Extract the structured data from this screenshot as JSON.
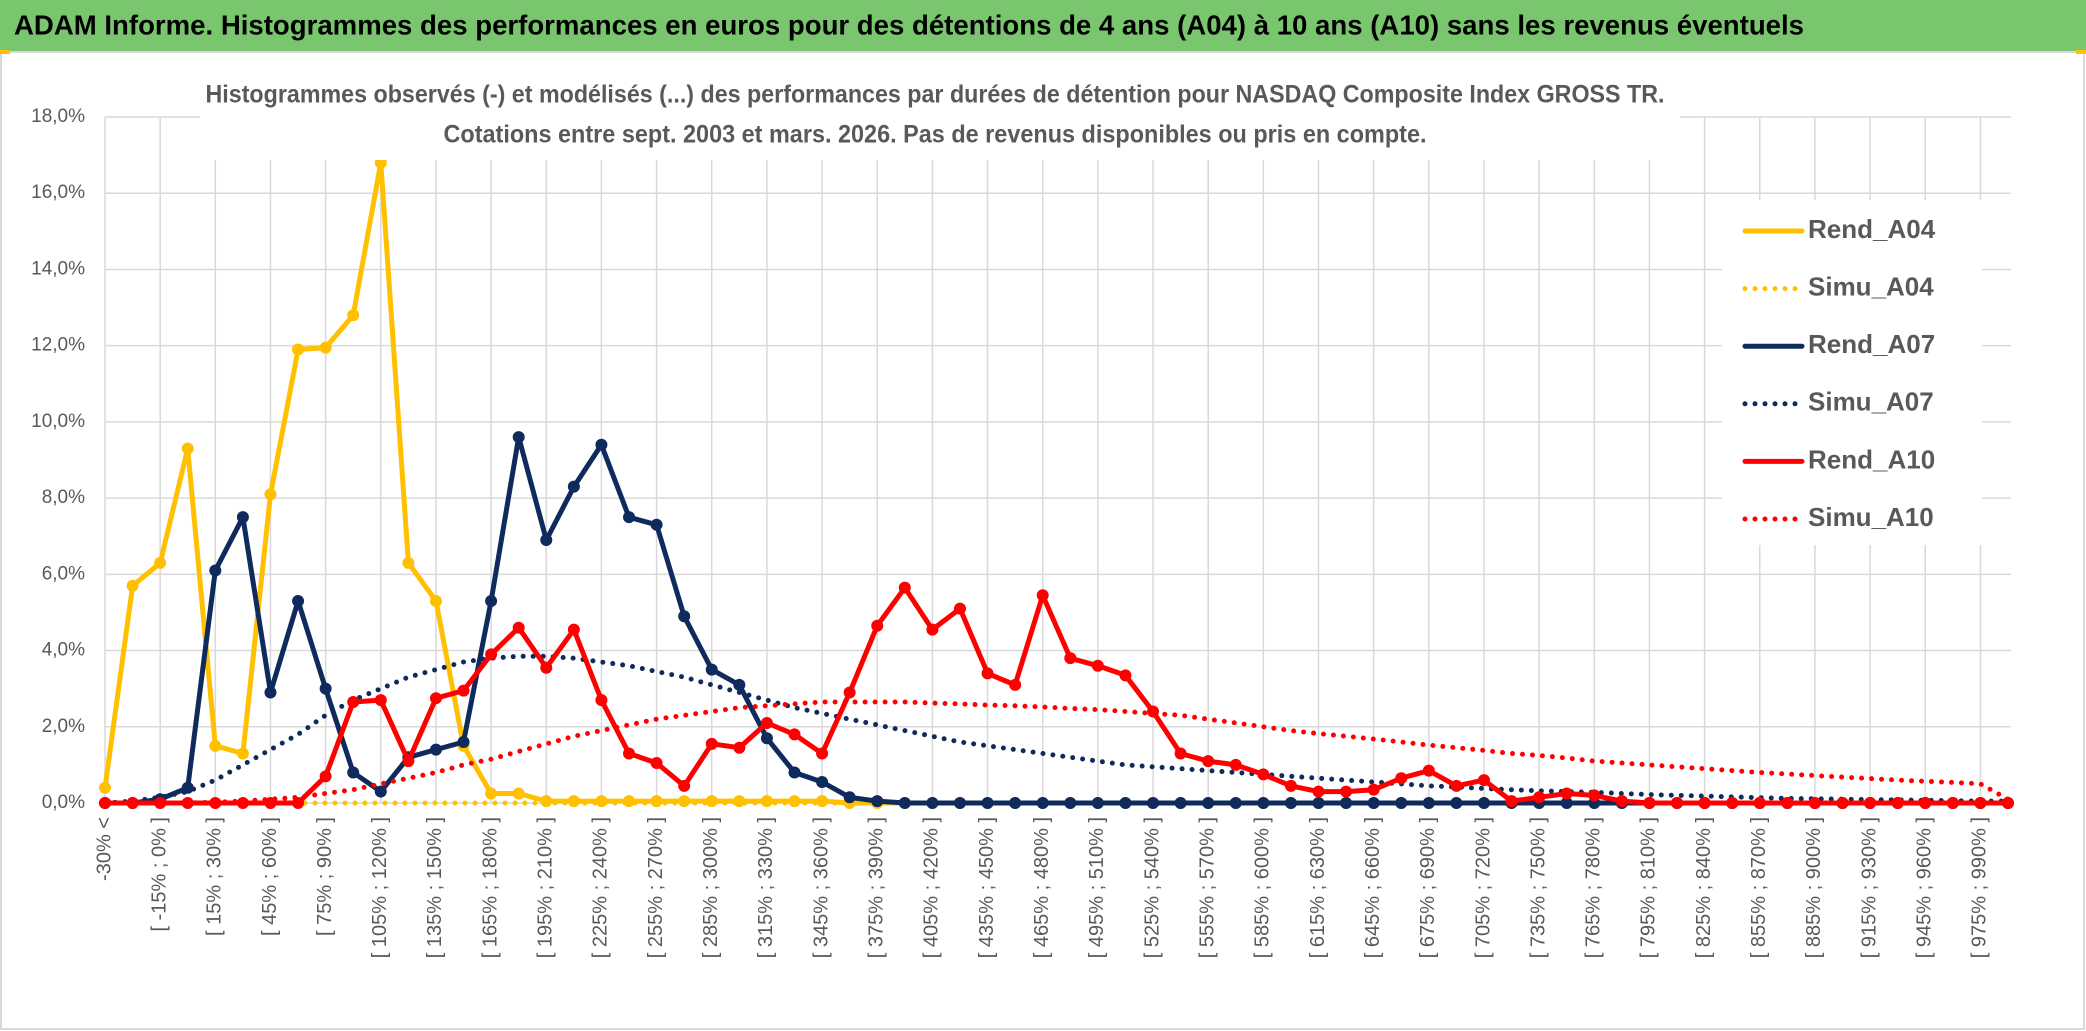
{
  "header": {
    "title": "ADAM Informe. Histogrammes des performances en euros pour des détentions de 4 ans (A04) à 10 ans (A10) sans les revenus éventuels"
  },
  "chart_data": {
    "type": "line",
    "title": "Histogrammes observés (-) et modélisés (...) des performances par durées de détention pour NASDAQ Composite Index GROSS TR.",
    "subtitle": "Cotations entre sept. 2003 et mars. 2026. Pas de revenus disponibles ou pris en compte.",
    "categories": [
      "-30% <",
      null,
      "[ -15% ; 0% ]",
      null,
      "[ 15% ; 30% ]",
      null,
      "[ 45% ; 60% ]",
      null,
      "[ 75% ; 90% ]",
      null,
      "[ 105% ; 120% ]",
      null,
      "[ 135% ; 150% ]",
      null,
      "[ 165% ; 180% ]",
      null,
      "[ 195% ; 210% ]",
      null,
      "[ 225% ; 240% ]",
      null,
      "[ 255% ; 270% ]",
      null,
      "[ 285% ; 300% ]",
      null,
      "[ 315% ; 330% ]",
      null,
      "[ 345% ; 360% ]",
      null,
      "[ 375% ; 390% ]",
      null,
      "[ 405% ; 420% ]",
      null,
      "[ 435% ; 450% ]",
      null,
      "[ 465% ; 480% ]",
      null,
      "[ 495% ; 510% ]",
      null,
      "[ 525% ; 540% ]",
      null,
      "[ 555% ; 570% ]",
      null,
      "[ 585% ; 600% ]",
      null,
      "[ 615% ; 630% ]",
      null,
      "[ 645% ; 660% ]",
      null,
      "[ 675% ; 690% ]",
      null,
      "[ 705% ; 720% ]",
      null,
      "[ 735% ; 750% ]",
      null,
      "[ 765% ; 780% ]",
      null,
      "[ 795% ; 810% ]",
      null,
      "[ 825% ; 840% ]",
      null,
      "[ 855% ; 870% ]",
      null,
      "[ 885% ; 900% ]",
      null,
      "[ 915% ; 930% ]",
      null,
      "[ 945% ; 960% ]",
      null,
      "[ 975% ; 990% ]",
      null
    ],
    "ylim": [
      0,
      18
    ],
    "yticks": [
      {
        "value": 0,
        "label": "0,0%"
      },
      {
        "value": 2,
        "label": "2,0%"
      },
      {
        "value": 4,
        "label": "4,0%"
      },
      {
        "value": 6,
        "label": "6,0%"
      },
      {
        "value": 8,
        "label": "8,0%"
      },
      {
        "value": 10,
        "label": "10,0%"
      },
      {
        "value": 12,
        "label": "12,0%"
      },
      {
        "value": 14,
        "label": "14,0%"
      },
      {
        "value": 16,
        "label": "16,0%"
      },
      {
        "value": 18,
        "label": "18,0%"
      }
    ],
    "grid": true,
    "legend": "right",
    "series": [
      {
        "name": "Rend_A04",
        "color": "#ffc000",
        "style": "solid",
        "markers": true,
        "values": [
          0.4,
          5.7,
          6.3,
          9.3,
          1.5,
          1.3,
          8.1,
          11.9,
          11.95,
          12.8,
          16.8,
          6.3,
          5.3,
          1.5,
          0.25,
          0.25,
          0.05,
          0.05,
          0.05,
          0.05,
          0.05,
          0.05,
          0.05,
          0.05,
          0.05,
          0.05,
          0.05,
          0,
          0,
          0,
          0,
          0,
          0,
          0,
          0,
          0,
          0,
          0,
          0,
          0,
          0,
          0,
          0,
          0,
          0,
          0,
          0,
          0,
          0,
          0,
          0,
          0,
          0,
          0,
          0,
          0,
          0,
          0,
          0,
          0,
          0,
          0,
          0,
          0,
          0,
          0,
          0,
          0,
          0,
          0
        ]
      },
      {
        "name": "Simu_A04",
        "color": "#ffc000",
        "style": "dotted",
        "markers": false,
        "values": [
          0,
          0,
          0,
          0,
          0,
          0,
          0,
          0,
          0,
          0,
          0,
          0,
          0,
          0,
          0,
          0,
          0,
          0,
          0,
          0,
          0,
          0,
          0,
          0,
          0,
          0,
          0,
          0,
          0,
          0,
          0,
          0,
          0,
          0,
          0,
          0,
          0,
          0,
          0,
          0,
          0,
          0,
          0,
          0,
          0,
          0,
          0,
          0,
          0,
          0,
          0,
          0,
          0,
          0,
          0,
          0,
          0,
          0,
          0,
          0,
          0,
          0,
          0,
          0,
          0,
          0,
          0,
          0,
          0,
          0
        ]
      },
      {
        "name": "Rend_A07",
        "color": "#0f2a5c",
        "style": "solid",
        "markers": true,
        "values": [
          0,
          0,
          0.1,
          0.4,
          6.1,
          7.5,
          2.9,
          5.3,
          3.0,
          0.8,
          0.3,
          1.2,
          1.4,
          1.6,
          5.3,
          9.6,
          6.9,
          8.3,
          9.4,
          7.5,
          7.3,
          4.9,
          3.5,
          3.1,
          1.7,
          0.8,
          0.55,
          0.15,
          0.05,
          0,
          0,
          0,
          0,
          0,
          0,
          0,
          0,
          0,
          0,
          0,
          0,
          0,
          0,
          0,
          0,
          0,
          0,
          0,
          0,
          0,
          0,
          0,
          0,
          0,
          0,
          0,
          0,
          0,
          0,
          0,
          0,
          0,
          0,
          0,
          0,
          0,
          0,
          0,
          0,
          0
        ]
      },
      {
        "name": "Simu_A07",
        "color": "#0f2a5c",
        "style": "dotted",
        "markers": false,
        "values": [
          0,
          0.05,
          0.15,
          0.3,
          0.6,
          1.0,
          1.4,
          1.8,
          2.3,
          2.7,
          3.0,
          3.3,
          3.5,
          3.7,
          3.8,
          3.85,
          3.85,
          3.8,
          3.7,
          3.6,
          3.45,
          3.3,
          3.1,
          2.9,
          2.7,
          2.5,
          2.35,
          2.2,
          2.05,
          1.9,
          1.75,
          1.6,
          1.5,
          1.4,
          1.3,
          1.2,
          1.1,
          1.0,
          0.95,
          0.9,
          0.85,
          0.8,
          0.75,
          0.7,
          0.65,
          0.6,
          0.55,
          0.5,
          0.45,
          0.42,
          0.38,
          0.35,
          0.32,
          0.3,
          0.28,
          0.25,
          0.22,
          0.2,
          0.18,
          0.16,
          0.14,
          0.12,
          0.11,
          0.1,
          0.09,
          0.08,
          0.07,
          0.06,
          0.05,
          0.05
        ]
      },
      {
        "name": "Rend_A10",
        "color": "#ff0000",
        "style": "solid",
        "markers": true,
        "values": [
          0,
          0,
          0,
          0,
          0,
          0,
          0,
          0,
          0.7,
          2.65,
          2.7,
          1.1,
          2.75,
          2.95,
          3.9,
          4.6,
          3.55,
          4.55,
          2.7,
          1.3,
          1.05,
          0.45,
          1.55,
          1.45,
          2.1,
          1.8,
          1.3,
          2.9,
          4.65,
          5.65,
          4.55,
          5.1,
          3.4,
          3.1,
          5.45,
          3.8,
          3.6,
          3.35,
          2.4,
          1.3,
          1.1,
          1.0,
          0.75,
          0.45,
          0.3,
          0.3,
          0.35,
          0.65,
          0.85,
          0.45,
          0.6,
          0.05,
          0.15,
          0.25,
          0.2,
          0.05,
          0,
          0,
          0,
          0,
          0,
          0,
          0,
          0,
          0,
          0,
          0,
          0,
          0,
          0
        ]
      },
      {
        "name": "Simu_A10",
        "color": "#ff0000",
        "style": "dotted",
        "markers": false,
        "values": [
          0,
          0,
          0,
          0,
          0.02,
          0.05,
          0.1,
          0.15,
          0.25,
          0.35,
          0.5,
          0.65,
          0.8,
          1.0,
          1.15,
          1.35,
          1.55,
          1.75,
          1.9,
          2.05,
          2.2,
          2.3,
          2.4,
          2.5,
          2.55,
          2.6,
          2.65,
          2.65,
          2.65,
          2.65,
          2.62,
          2.6,
          2.57,
          2.55,
          2.52,
          2.48,
          2.45,
          2.4,
          2.35,
          2.3,
          2.2,
          2.1,
          2.0,
          1.9,
          1.82,
          1.75,
          1.68,
          1.6,
          1.52,
          1.45,
          1.38,
          1.3,
          1.25,
          1.18,
          1.1,
          1.05,
          1.0,
          0.95,
          0.9,
          0.85,
          0.8,
          0.76,
          0.72,
          0.68,
          0.64,
          0.6,
          0.57,
          0.54,
          0.5,
          0.1
        ]
      }
    ]
  }
}
